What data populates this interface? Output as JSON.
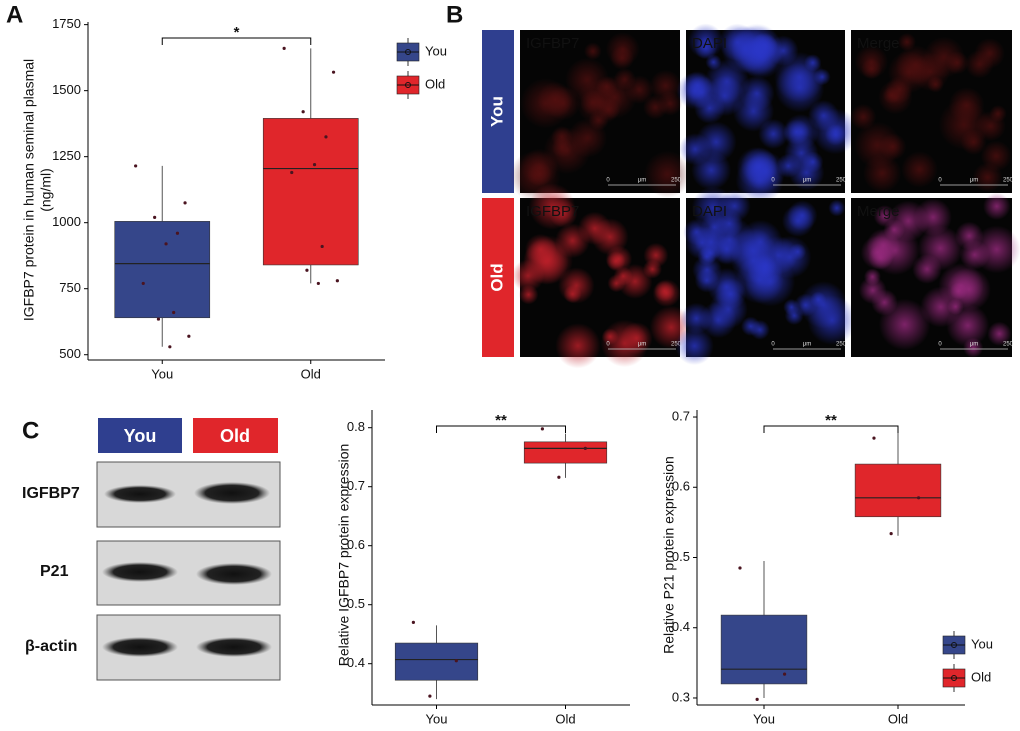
{
  "panels": {
    "A": "A",
    "B": "B",
    "C": "C"
  },
  "microscopy": {
    "rows": [
      "You",
      "Old"
    ],
    "columns": [
      "IGFBP7",
      "DAPI",
      "Merge"
    ],
    "scale_bar": [
      "0",
      "μm",
      "250"
    ]
  },
  "blot": {
    "groups": [
      "You",
      "Old"
    ],
    "rows": [
      "IGFBP7",
      "P21",
      "β-actin"
    ]
  },
  "chart_data": [
    {
      "type": "box",
      "ylabel": [
        "IGFBP7 protein in human seminal plasmal",
        "(ng/ml)"
      ],
      "categories": [
        "You",
        "Old"
      ],
      "ylim": [
        480,
        1760
      ],
      "yticks": [
        500,
        750,
        1000,
        1250,
        1500,
        1750
      ],
      "significance": "*",
      "legend": "right",
      "series": [
        {
          "name": "You",
          "color": "#35468a",
          "whisker": [
            530,
            1215
          ],
          "box": [
            640,
            845,
            1005
          ],
          "points": [
            1215,
            1075,
            1020,
            960,
            920,
            770,
            660,
            635,
            570,
            530
          ]
        },
        {
          "name": "Old",
          "color": "#e0262b",
          "whisker": [
            770,
            1660
          ],
          "box": [
            840,
            1205,
            1395
          ],
          "points": [
            1660,
            1570,
            1420,
            1325,
            1220,
            1190,
            910,
            820,
            780,
            770
          ]
        }
      ]
    },
    {
      "type": "box",
      "ylabel": [
        "Relative IGFBP7 protein expression"
      ],
      "categories": [
        "You",
        "Old"
      ],
      "ylim": [
        0.33,
        0.83
      ],
      "yticks": [
        0.4,
        0.5,
        0.6,
        0.7,
        0.8
      ],
      "significance": "**",
      "series": [
        {
          "name": "You",
          "color": "#35468a",
          "whisker": [
            0.34,
            0.465
          ],
          "box": [
            0.372,
            0.407,
            0.435
          ],
          "points": [
            0.47,
            0.405,
            0.345
          ]
        },
        {
          "name": "Old",
          "color": "#e0262b",
          "whisker": [
            0.715,
            0.79
          ],
          "box": [
            0.74,
            0.765,
            0.776
          ],
          "points": [
            0.798,
            0.765,
            0.716
          ]
        }
      ]
    },
    {
      "type": "box",
      "ylabel": [
        "Relative P21 protein expression"
      ],
      "categories": [
        "You",
        "Old"
      ],
      "ylim": [
        0.29,
        0.71
      ],
      "yticks": [
        0.3,
        0.4,
        0.5,
        0.6,
        0.7
      ],
      "significance": "**",
      "legend": "bottom-right",
      "series": [
        {
          "name": "You",
          "color": "#35468a",
          "whisker": [
            0.3,
            0.495
          ],
          "box": [
            0.32,
            0.341,
            0.418
          ],
          "points": [
            0.485,
            0.334,
            0.298
          ]
        },
        {
          "name": "Old",
          "color": "#e0262b",
          "whisker": [
            0.531,
            0.68
          ],
          "box": [
            0.558,
            0.585,
            0.633
          ],
          "points": [
            0.67,
            0.585,
            0.534
          ]
        }
      ]
    }
  ]
}
